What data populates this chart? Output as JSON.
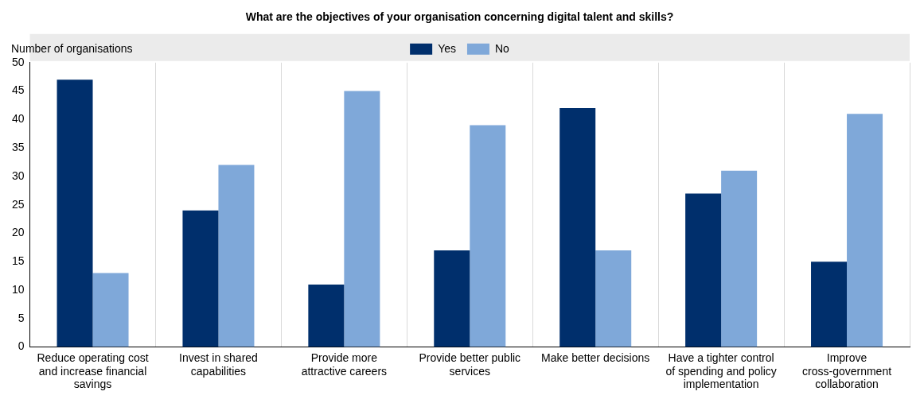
{
  "chart_data": {
    "type": "bar",
    "title": "What are the objectives of your organisation concerning digital talent and skills?",
    "ylabel": "Number of organisations",
    "categories": [
      "Reduce operating cost and increase financial savings",
      "Invest in shared capabilities",
      "Provide more attractive careers",
      "Provide better public services",
      "Make better decisions",
      "Have a tighter control of spending and policy implementation",
      "Improve cross-government collaboration"
    ],
    "series": [
      {
        "name": "Yes",
        "color": "#002f6c",
        "values": [
          47,
          24,
          11,
          17,
          42,
          27,
          15
        ]
      },
      {
        "name": "No",
        "color": "#7fa8d9",
        "values": [
          13,
          32,
          45,
          39,
          17,
          31,
          41
        ]
      }
    ],
    "ylim": [
      0,
      50
    ],
    "yticks": [
      0,
      5,
      10,
      15,
      20,
      25,
      30,
      35,
      40,
      45,
      50
    ],
    "grid": "x",
    "legend": "top"
  }
}
